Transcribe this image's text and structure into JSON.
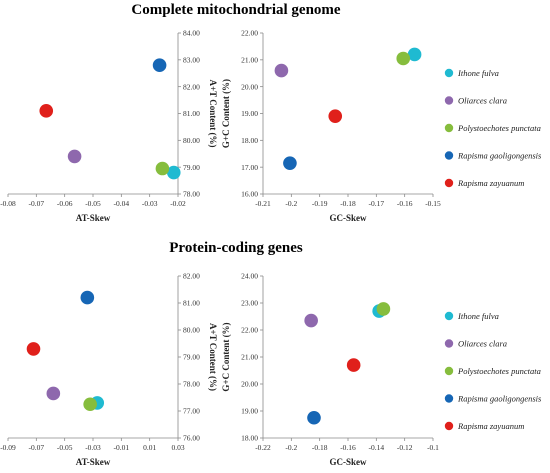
{
  "sections": [
    {
      "title": "Complete mitochondrial genome"
    },
    {
      "title": "Protein-coding genes"
    }
  ],
  "colors": {
    "Ithone fulva": "#1fbad1",
    "Oliarces clara": "#8e68ad",
    "Polystoechotes punctata": "#86bd3d",
    "Rapisma gaoligongensis": "#1666b5",
    "Rapisma zayuanum": "#e0201b"
  },
  "legend": [
    "Ithone fulva",
    "Oliarces clara",
    "Polystoechotes punctata",
    "Rapisma gaoligongensis",
    "Rapisma zayuanum"
  ],
  "chart_data": [
    {
      "type": "scatter",
      "panel": "genome-at",
      "xlabel": "AT-Skew",
      "ylabel": "A+T Content (%)",
      "xlim": [
        -0.08,
        -0.02
      ],
      "ylim": [
        78.0,
        84.0
      ],
      "xticks": [
        "-0.08",
        "-0.07",
        "-0.06",
        "-0.05",
        "-0.04",
        "-0.03",
        "-0.02"
      ],
      "yticks": [
        "78.00",
        "79.00",
        "80.00",
        "81.00",
        "82.00",
        "83.00",
        "84.00"
      ],
      "series": [
        {
          "name": "Ithone fulva",
          "x": [
            -0.0215
          ],
          "y": [
            78.8
          ]
        },
        {
          "name": "Oliarces clara",
          "x": [
            -0.0565
          ],
          "y": [
            79.4
          ]
        },
        {
          "name": "Polystoechotes punctata",
          "x": [
            -0.0255
          ],
          "y": [
            78.95
          ]
        },
        {
          "name": "Rapisma gaoligongensis",
          "x": [
            -0.0265
          ],
          "y": [
            82.8
          ]
        },
        {
          "name": "Rapisma zayuanum",
          "x": [
            -0.0665
          ],
          "y": [
            81.1
          ]
        }
      ]
    },
    {
      "type": "scatter",
      "panel": "genome-gc",
      "xlabel": "GC-Skew",
      "ylabel": "G+C Content (%)",
      "xlim": [
        -0.21,
        -0.15
      ],
      "ylim": [
        16.0,
        22.0
      ],
      "xticks": [
        "-0.21",
        "-0.2",
        "-0.19",
        "-0.18",
        "-0.17",
        "-0.16",
        "-0.15"
      ],
      "yticks": [
        "16.00",
        "17.00",
        "18.00",
        "19.00",
        "20.00",
        "21.00",
        "22.00"
      ],
      "series": [
        {
          "name": "Ithone fulva",
          "x": [
            -0.1565
          ],
          "y": [
            21.2
          ]
        },
        {
          "name": "Oliarces clara",
          "x": [
            -0.2035
          ],
          "y": [
            20.6
          ]
        },
        {
          "name": "Polystoechotes punctata",
          "x": [
            -0.1605
          ],
          "y": [
            21.05
          ]
        },
        {
          "name": "Rapisma gaoligongensis",
          "x": [
            -0.2005
          ],
          "y": [
            17.15
          ]
        },
        {
          "name": "Rapisma zayuanum",
          "x": [
            -0.1845
          ],
          "y": [
            18.9
          ]
        }
      ]
    },
    {
      "type": "scatter",
      "panel": "pcg-at",
      "xlabel": "AT-Skew",
      "ylabel": "A+T Content (%)",
      "xlim": [
        -0.09,
        0.03
      ],
      "ylim": [
        76.0,
        82.0
      ],
      "xticks": [
        "-0.09",
        "-0.07",
        "-0.05",
        "-0.03",
        "-0.01",
        "0.01",
        "0.03"
      ],
      "yticks": [
        "76.00",
        "77.00",
        "78.00",
        "79.00",
        "80.00",
        "81.00",
        "82.00"
      ],
      "series": [
        {
          "name": "Ithone fulva",
          "x": [
            -0.027
          ],
          "y": [
            77.3
          ]
        },
        {
          "name": "Oliarces clara",
          "x": [
            -0.058
          ],
          "y": [
            77.65
          ]
        },
        {
          "name": "Polystoechotes punctata",
          "x": [
            -0.032
          ],
          "y": [
            77.25
          ]
        },
        {
          "name": "Rapisma gaoligongensis",
          "x": [
            -0.034
          ],
          "y": [
            81.2
          ]
        },
        {
          "name": "Rapisma zayuanum",
          "x": [
            -0.072
          ],
          "y": [
            79.3
          ]
        }
      ]
    },
    {
      "type": "scatter",
      "panel": "pcg-gc",
      "xlabel": "GC-Skew",
      "ylabel": "G+C Content (%)",
      "xlim": [
        -0.22,
        -0.1
      ],
      "ylim": [
        18.0,
        24.0
      ],
      "xticks": [
        "-0.22",
        "-0.2",
        "-0.18",
        "-0.16",
        "-0.14",
        "-0.12",
        "-0.1"
      ],
      "yticks": [
        "18.00",
        "19.00",
        "20.00",
        "21.00",
        "22.00",
        "23.00",
        "24.00"
      ],
      "series": [
        {
          "name": "Ithone fulva",
          "x": [
            -0.138
          ],
          "y": [
            22.7
          ]
        },
        {
          "name": "Oliarces clara",
          "x": [
            -0.186
          ],
          "y": [
            22.35
          ]
        },
        {
          "name": "Polystoechotes punctata",
          "x": [
            -0.135
          ],
          "y": [
            22.78
          ]
        },
        {
          "name": "Rapisma gaoligongensis",
          "x": [
            -0.184
          ],
          "y": [
            18.75
          ]
        },
        {
          "name": "Rapisma zayuanum",
          "x": [
            -0.156
          ],
          "y": [
            20.7
          ]
        }
      ]
    }
  ]
}
